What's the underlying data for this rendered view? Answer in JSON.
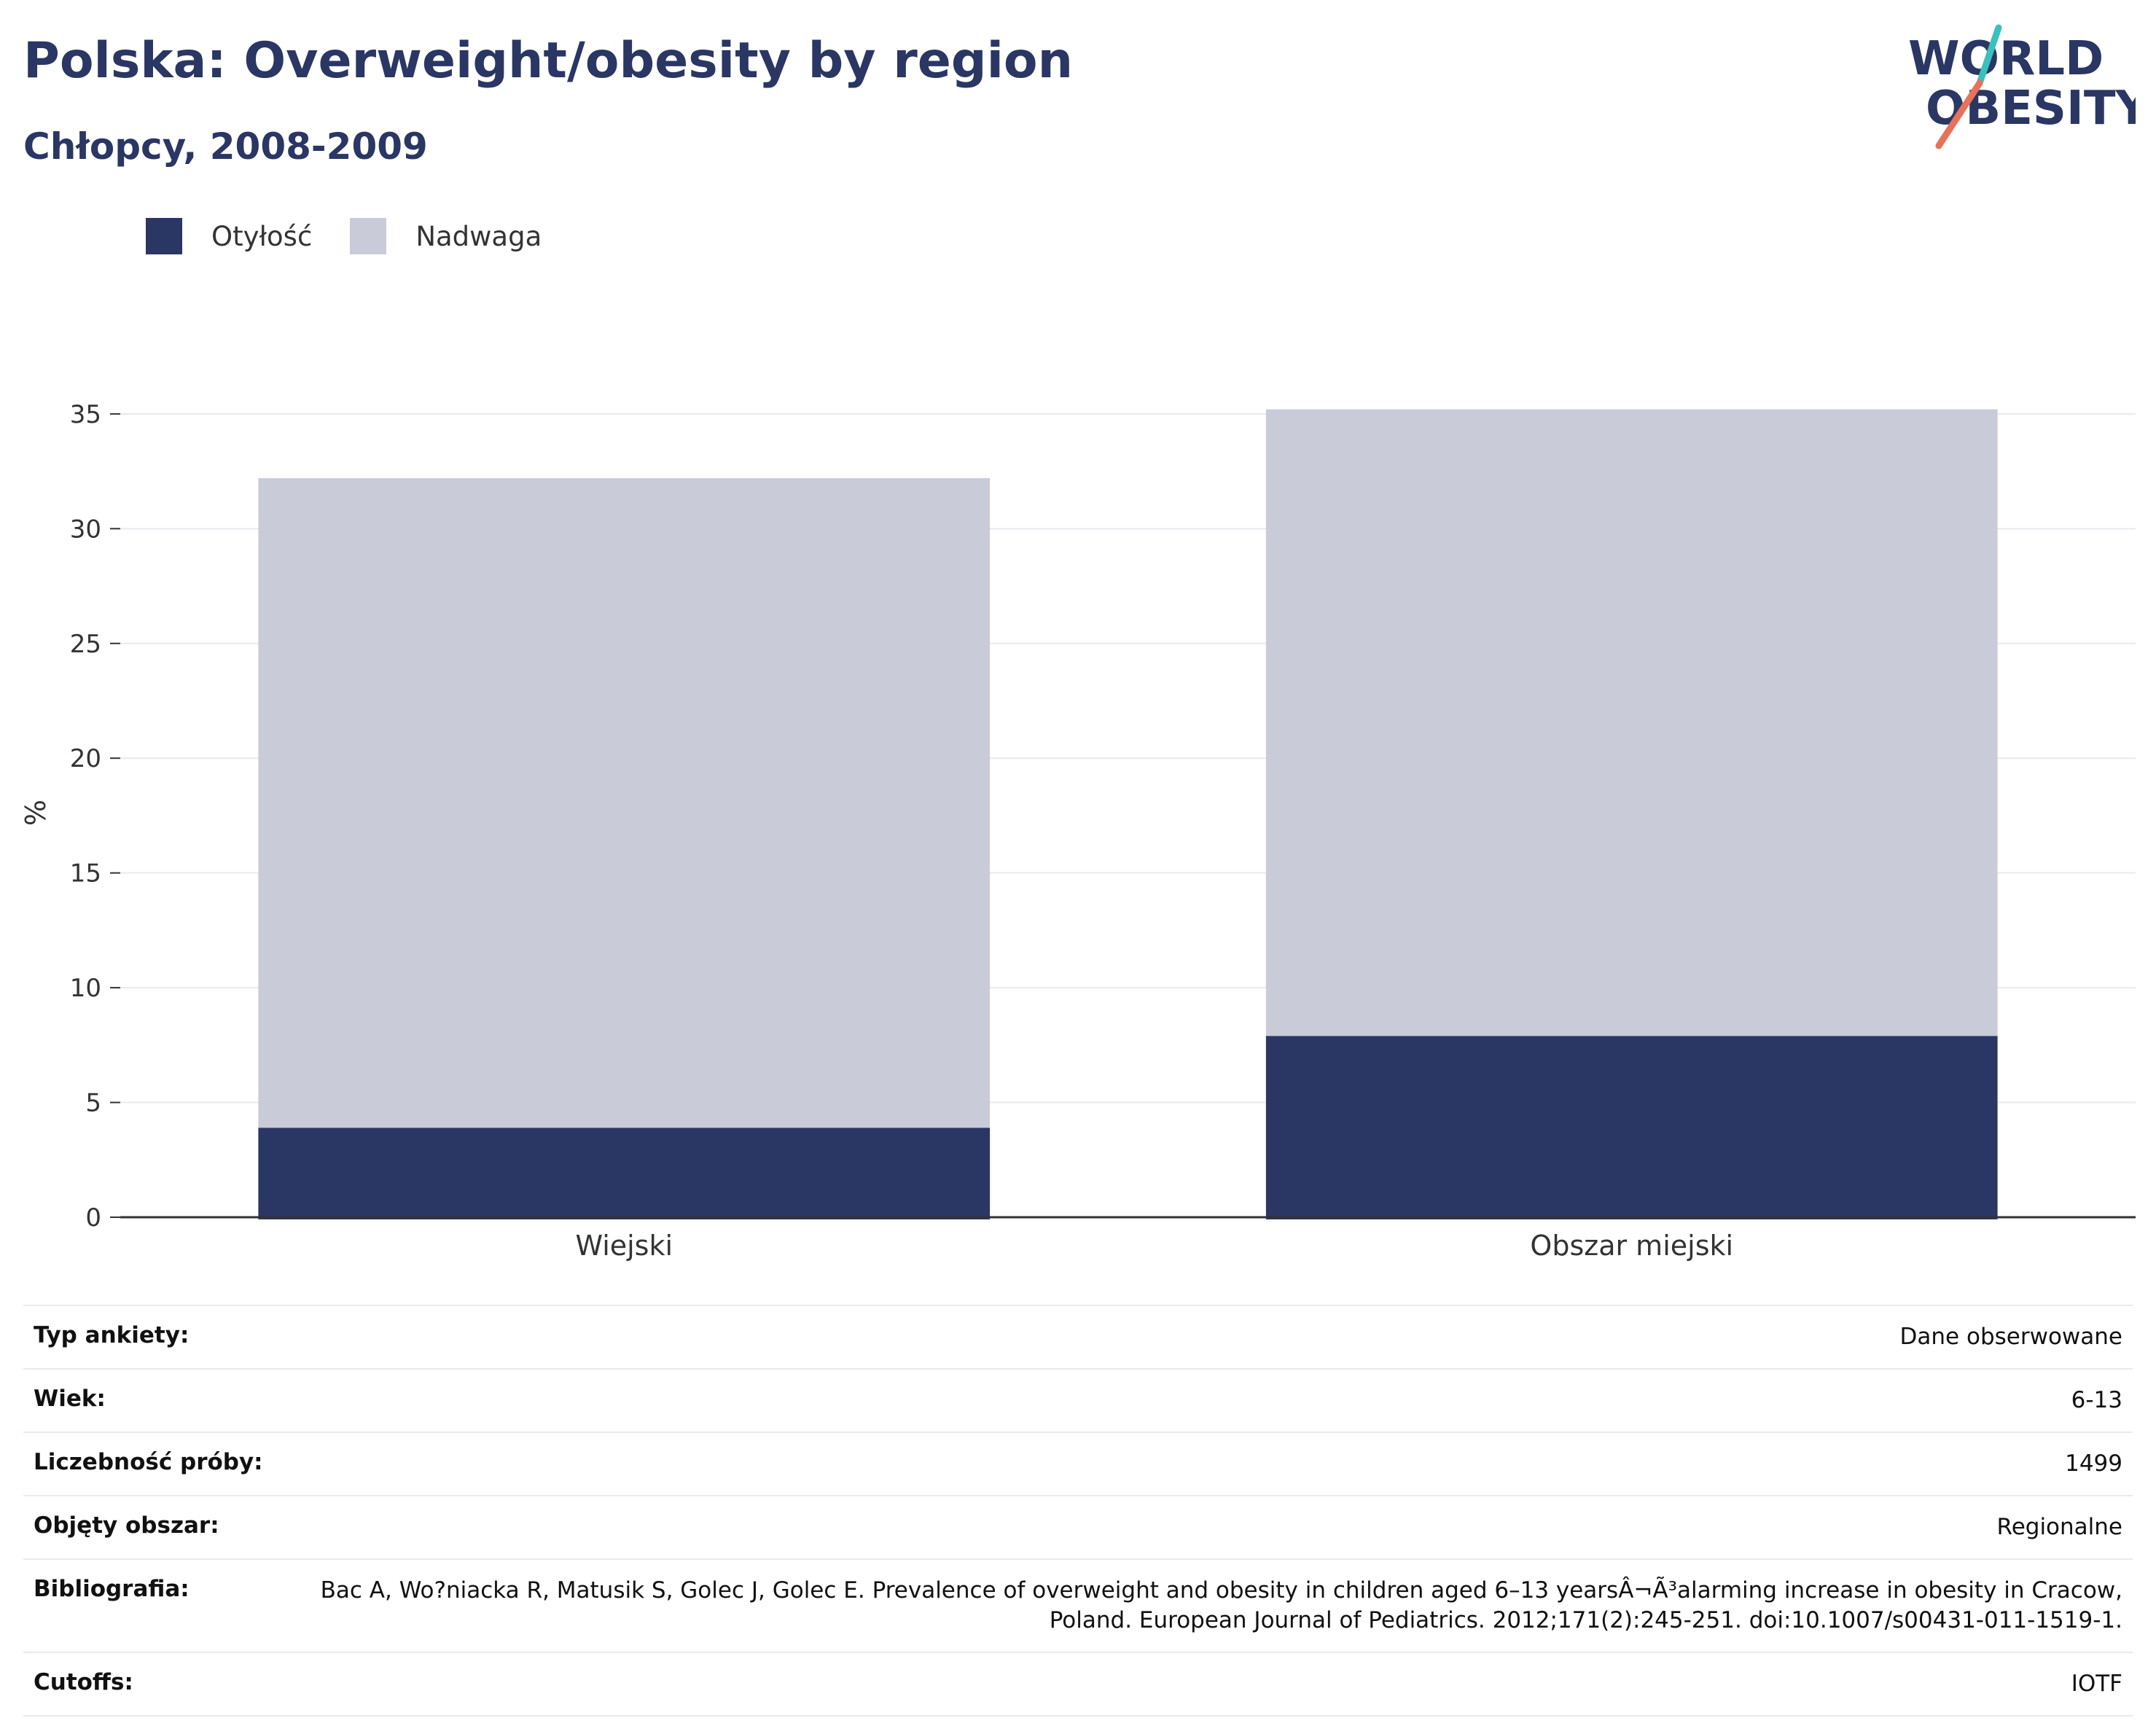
{
  "header": {
    "title": "Polska: Overweight/obesity by region",
    "subtitle": "Chłopcy, 2008-2009",
    "logo": {
      "line1": "WORLD",
      "line2": "OBESITY",
      "accent_colors": [
        "#3bbfbf",
        "#e8715a"
      ]
    }
  },
  "colors": {
    "obesity": "#2a3663",
    "overweight": "#c9ccd8",
    "grid": "#e8eaf0",
    "axis": "#333333"
  },
  "legend": [
    {
      "label": "Otyłość",
      "color": "#2a3663"
    },
    {
      "label": "Nadwaga",
      "color": "#c9ccd8"
    }
  ],
  "chart_data": {
    "type": "bar",
    "stacked": true,
    "categories": [
      "Wiejski",
      "Obszar miejski"
    ],
    "series": [
      {
        "name": "Otyłość",
        "values": [
          3.9,
          7.9
        ]
      },
      {
        "name": "Nadwaga",
        "values": [
          28.3,
          27.3
        ]
      }
    ],
    "ylabel": "%",
    "ylim": [
      0,
      35
    ],
    "yticks": [
      0,
      5,
      10,
      15,
      20,
      25,
      30,
      35
    ],
    "grid": true,
    "legend_position": "top-left"
  },
  "info": [
    {
      "label": "Typ ankiety:",
      "value": "Dane obserwowane"
    },
    {
      "label": "Wiek:",
      "value": "6-13"
    },
    {
      "label": "Liczebność próby:",
      "value": "1499"
    },
    {
      "label": "Objęty obszar:",
      "value": "Regionalne"
    },
    {
      "label": "Bibliografia:",
      "value": "Bac A, Wo?niacka R, Matusik S, Golec J, Golec E. Prevalence of overweight and obesity in children aged 6–13 yearsÂ¬Ã³alarming increase in obesity in Cracow, Poland. European Journal of Pediatrics. 2012;171(2):245-251. doi:10.1007/s00431-011-1519-1."
    },
    {
      "label": "Cutoffs:",
      "value": "IOTF"
    }
  ]
}
